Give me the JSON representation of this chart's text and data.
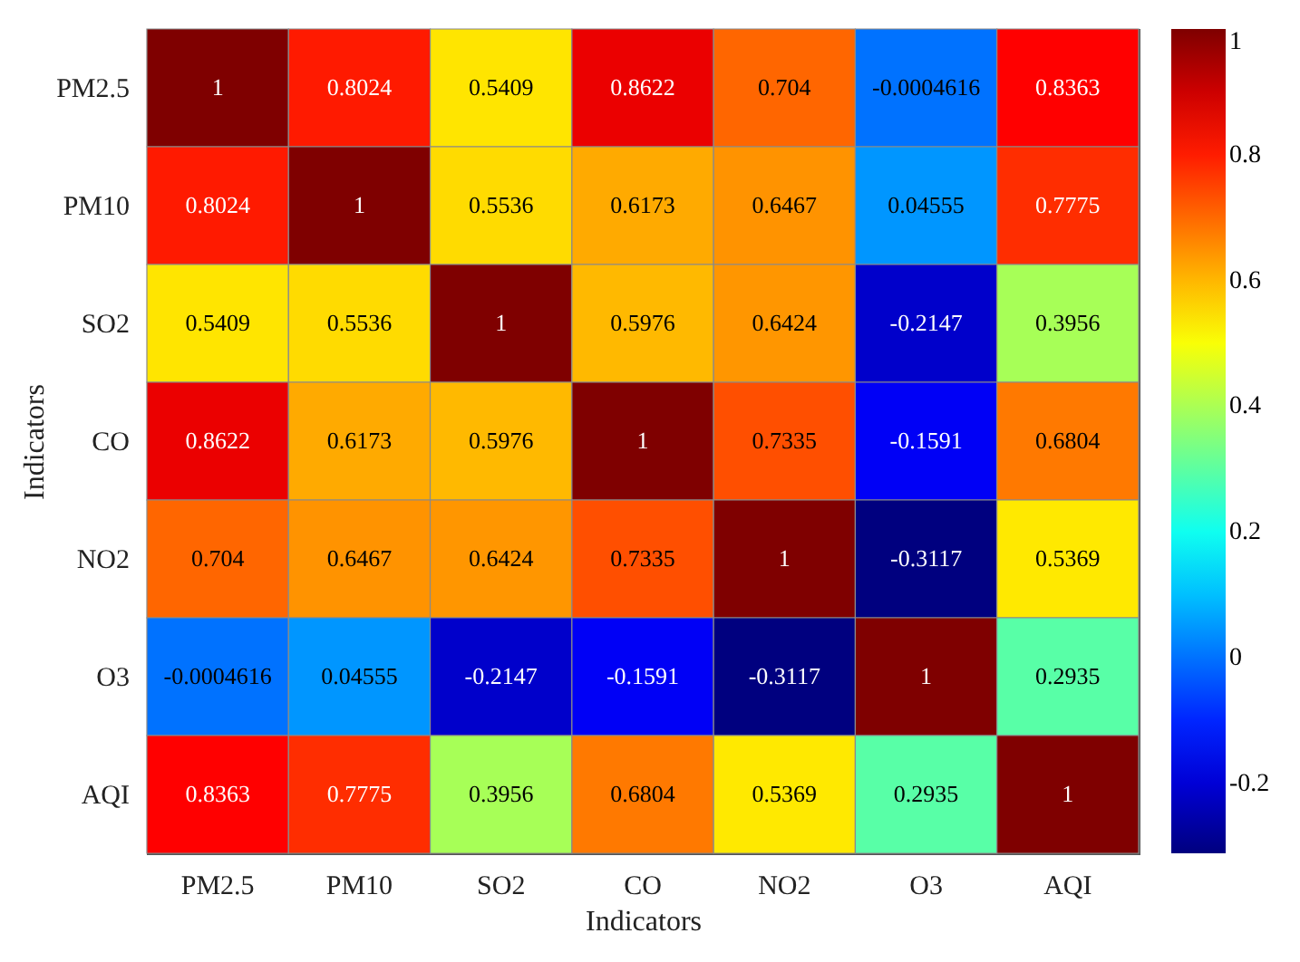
{
  "chart_data": {
    "type": "heatmap",
    "xlabel": "Indicators",
    "ylabel": "Indicators",
    "categories": [
      "PM2.5",
      "PM10",
      "SO2",
      "CO",
      "NO2",
      "O3",
      "AQI"
    ],
    "y_categories": [
      "PM2.5",
      "PM10",
      "SO2",
      "CO",
      "NO2",
      "O3",
      "AQI"
    ],
    "cells": [
      [
        1,
        0.8024,
        0.5409,
        0.8622,
        0.704,
        -0.0004616,
        0.8363
      ],
      [
        0.8024,
        1,
        0.5536,
        0.6173,
        0.6467,
        0.04555,
        0.7775
      ],
      [
        0.5409,
        0.5536,
        1,
        0.5976,
        0.6424,
        -0.2147,
        0.3956
      ],
      [
        0.8622,
        0.6173,
        0.5976,
        1,
        0.7335,
        -0.1591,
        0.6804
      ],
      [
        0.704,
        0.6467,
        0.6424,
        0.7335,
        1,
        -0.3117,
        0.5369
      ],
      [
        -0.0004616,
        0.04555,
        -0.2147,
        -0.1591,
        -0.3117,
        1,
        0.2935
      ],
      [
        0.8363,
        0.7775,
        0.3956,
        0.6804,
        0.5369,
        0.2935,
        1
      ]
    ],
    "clim": [
      -0.3117,
      1
    ],
    "cticks": [
      1,
      0.8,
      0.6,
      0.4,
      0.2,
      0,
      -0.2
    ],
    "data_labels": true
  }
}
